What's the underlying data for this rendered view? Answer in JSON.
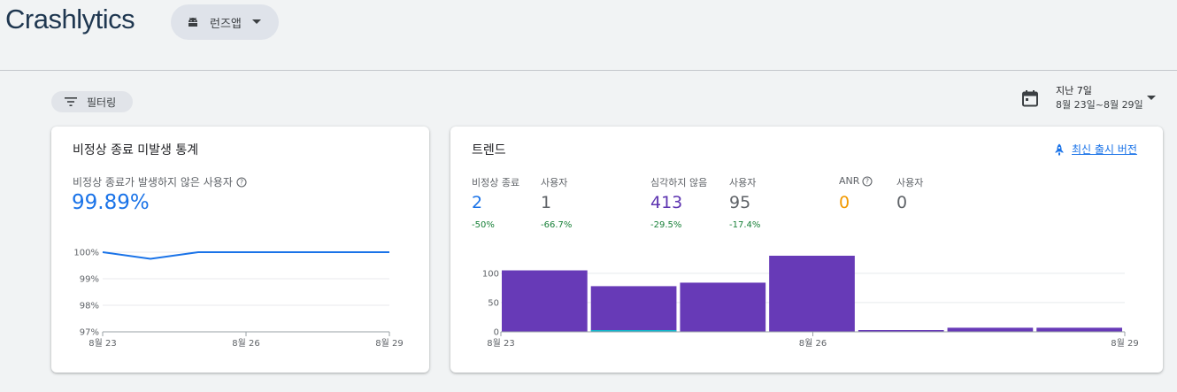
{
  "header": {
    "title": "Crashlytics",
    "app_name": "런즈앱"
  },
  "toolbar": {
    "filter_label": "필터링",
    "date_range": {
      "name": "지난 7일",
      "dates": "8월 23일~8월 29일"
    }
  },
  "crash_free_card": {
    "title": "비정상 종료 미발생 통계",
    "metric_label": "비정상 종료가 발생하지 않은 사용자",
    "metric_value": "99.89%",
    "chart_data": {
      "type": "line",
      "x": [
        "8월 23",
        "8월 24",
        "8월 25",
        "8월 26",
        "8월 27",
        "8월 28",
        "8월 29"
      ],
      "x_tick_labels": [
        "8월 23",
        "8월 26",
        "8월 29"
      ],
      "series": [
        {
          "values": [
            100,
            99.75,
            100,
            100,
            100,
            100,
            100
          ]
        }
      ],
      "y_tick_labels": [
        "97%",
        "98%",
        "99%",
        "100%"
      ],
      "ylim": [
        97,
        100
      ],
      "grid": true,
      "line_color": "#1a73e8"
    }
  },
  "trends_card": {
    "title": "트렌드",
    "latest_release_link": "최신 출시 버전",
    "stats": [
      {
        "label": "비정상 종료",
        "value": "2",
        "change": "-50%",
        "value_color": "#1a73e8"
      },
      {
        "label": "사용자",
        "value": "1",
        "change": "-66.7%",
        "value_color": "#5f6368"
      },
      {
        "label": "심각하지 않음",
        "value": "413",
        "change": "-29.5%",
        "value_color": "#5e35b1"
      },
      {
        "label": "사용자",
        "value": "95",
        "change": "-17.4%",
        "value_color": "#5f6368"
      },
      {
        "label": "ANR",
        "value": "0",
        "change": "",
        "value_color": "#f29900",
        "has_help": true
      },
      {
        "label": "사용자",
        "value": "0",
        "change": "",
        "value_color": "#5f6368"
      }
    ],
    "chart_data": {
      "type": "bar",
      "categories": [
        "8월 23",
        "8월 24",
        "8월 25",
        "8월 26",
        "8월 27",
        "8월 28",
        "8월 29"
      ],
      "x_tick_labels": [
        "8월 23",
        "8월 26",
        "8월 29"
      ],
      "series": [
        {
          "values": [
            105,
            78,
            84,
            130,
            3,
            7,
            7
          ],
          "color": "#673ab7"
        },
        {
          "values": [
            0,
            2,
            0,
            0,
            0,
            0,
            0
          ],
          "color": "#12b5cb"
        }
      ],
      "y_tick_labels": [
        "0",
        "50",
        "100"
      ],
      "ylim": [
        0,
        130
      ],
      "grid": true
    }
  }
}
